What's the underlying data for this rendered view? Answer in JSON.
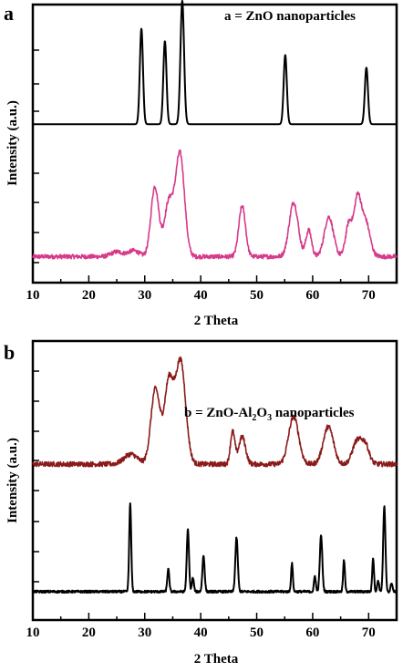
{
  "chart_data": [
    {
      "type": "line",
      "panel_label": "a",
      "xlabel": "2 Theta",
      "ylabel": "Intensity (a.u.)",
      "xlim": [
        10,
        75
      ],
      "xticks": [
        10,
        20,
        30,
        40,
        50,
        60,
        70
      ],
      "xtick_labels": [
        "10",
        "20",
        "30",
        "40",
        "50",
        "60",
        "70"
      ],
      "annotation": {
        "prefix": "a = ZnO nanoparticles",
        "sub": "",
        "suffix": ""
      },
      "series": [
        {
          "color": "#000000",
          "position": "upper",
          "baseline": 0.1,
          "peaks": [
            [
              29.4,
              0.76,
              0.28
            ],
            [
              33.6,
              0.66,
              0.28
            ],
            [
              36.7,
              0.98,
              0.32
            ],
            [
              55.1,
              0.55,
              0.28
            ],
            [
              69.6,
              0.45,
              0.28
            ]
          ],
          "noise": 0.0
        },
        {
          "color": "#d63a8a",
          "position": "lower",
          "baseline": 0.08,
          "peaks": [
            [
              25.0,
              0.04,
              1.0
            ],
            [
              28.0,
              0.05,
              1.0
            ],
            [
              31.8,
              0.58,
              0.7
            ],
            [
              34.3,
              0.45,
              0.8
            ],
            [
              36.3,
              0.85,
              0.8
            ],
            [
              47.4,
              0.42,
              0.6
            ],
            [
              56.6,
              0.45,
              0.8
            ],
            [
              59.3,
              0.22,
              0.5
            ],
            [
              62.9,
              0.33,
              0.8
            ],
            [
              66.5,
              0.28,
              0.6
            ],
            [
              68.0,
              0.45,
              0.6
            ],
            [
              69.4,
              0.3,
              0.8
            ]
          ],
          "noise": 0.018
        }
      ]
    },
    {
      "type": "line",
      "panel_label": "b",
      "xlabel": "2 Theta",
      "ylabel": "Intensity (a.u.)",
      "xlim": [
        10,
        75
      ],
      "xticks": [
        10,
        20,
        30,
        40,
        50,
        60,
        70
      ],
      "xtick_labels": [
        "10",
        "20",
        "30",
        "40",
        "50",
        "60",
        "70"
      ],
      "annotation": {
        "prefix": "b = ZnO-Al",
        "sub": "2",
        "suffix": "O",
        "sub2": "3",
        "suffix2": " nanoparticles"
      },
      "series": [
        {
          "color": "#8b1a1a",
          "position": "upper",
          "baseline": 0.08,
          "peaks": [
            [
              27.5,
              0.08,
              1.2
            ],
            [
              31.9,
              0.6,
              0.8
            ],
            [
              34.3,
              0.65,
              0.8
            ],
            [
              36.4,
              0.82,
              0.9
            ],
            [
              45.7,
              0.26,
              0.4
            ],
            [
              47.4,
              0.22,
              0.6
            ],
            [
              56.6,
              0.38,
              0.9
            ],
            [
              62.8,
              0.3,
              0.9
            ],
            [
              67.9,
              0.18,
              0.8
            ],
            [
              69.4,
              0.15,
              0.7
            ]
          ],
          "noise": 0.02
        },
        {
          "color": "#000000",
          "position": "lower",
          "baseline": 0.05,
          "peaks": [
            [
              27.4,
              0.78,
              0.18
            ],
            [
              34.2,
              0.2,
              0.18
            ],
            [
              37.7,
              0.55,
              0.2
            ],
            [
              38.6,
              0.12,
              0.18
            ],
            [
              40.5,
              0.32,
              0.2
            ],
            [
              46.4,
              0.48,
              0.22
            ],
            [
              56.3,
              0.25,
              0.16
            ],
            [
              60.4,
              0.14,
              0.16
            ],
            [
              61.5,
              0.5,
              0.22
            ],
            [
              65.6,
              0.28,
              0.16
            ],
            [
              70.8,
              0.3,
              0.16
            ],
            [
              71.7,
              0.1,
              0.16
            ],
            [
              72.8,
              0.76,
              0.2
            ],
            [
              74.1,
              0.08,
              0.16
            ]
          ],
          "noise": 0.01
        }
      ]
    }
  ]
}
